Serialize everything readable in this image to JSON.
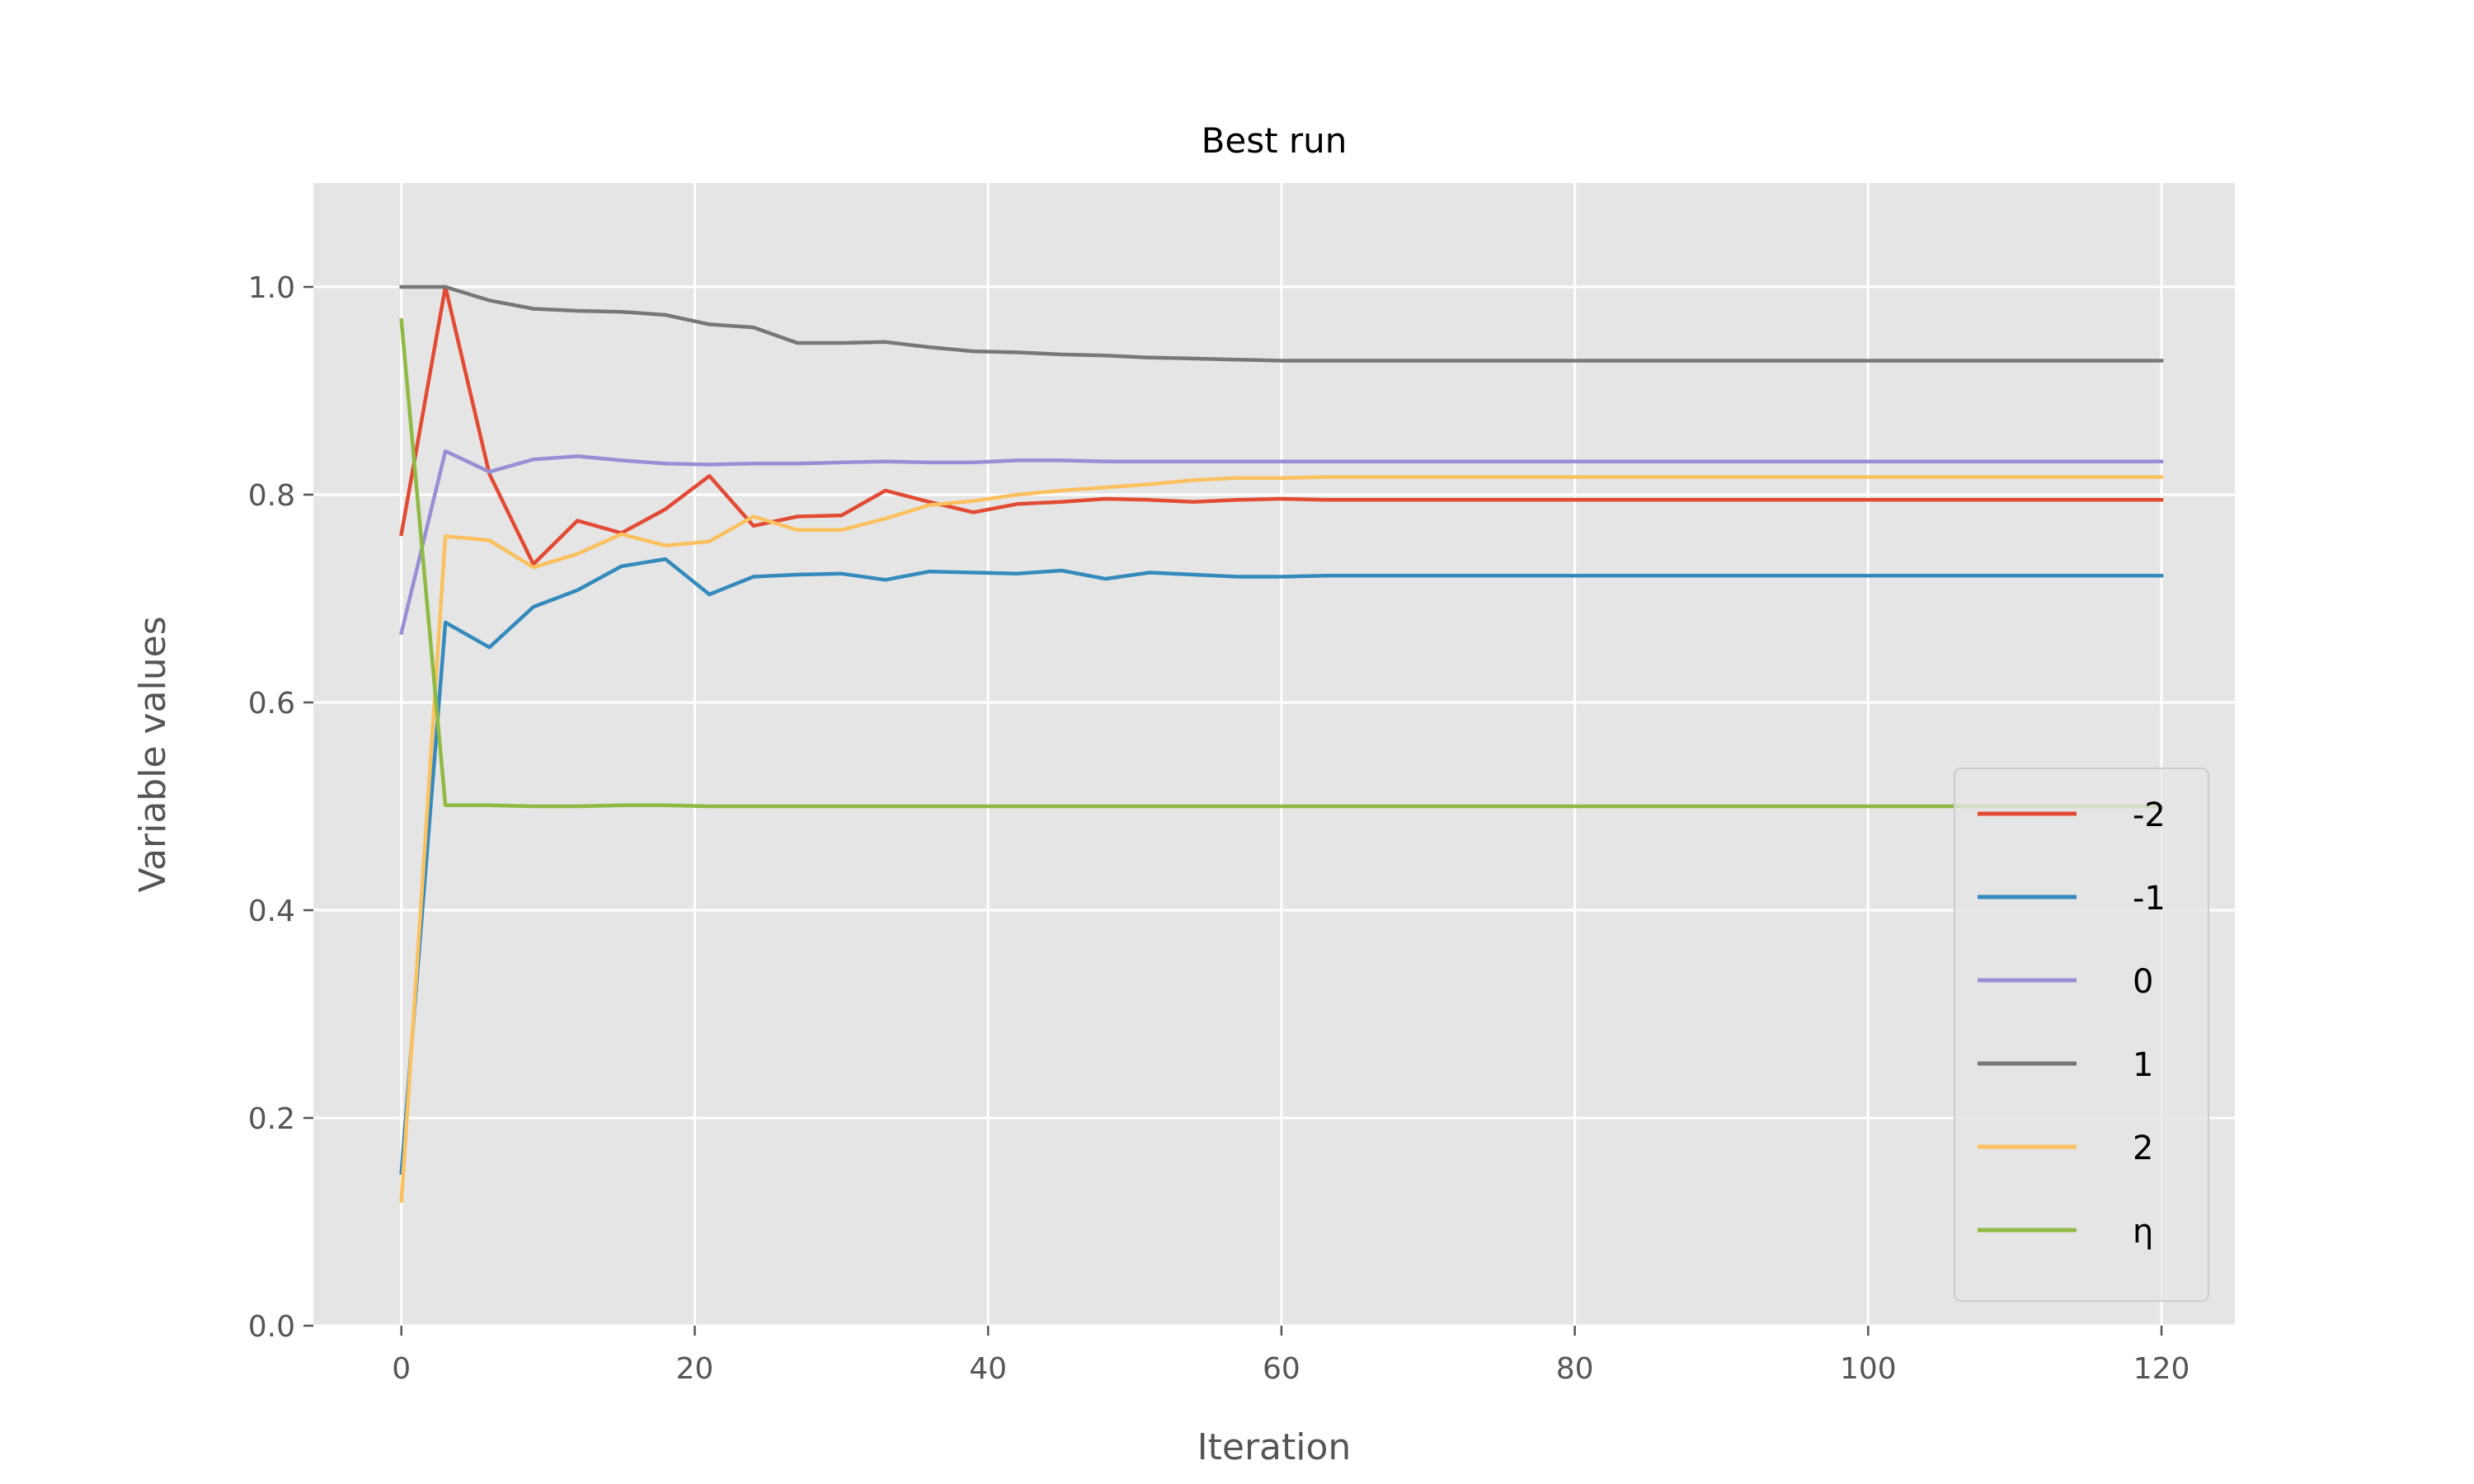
{
  "chart_data": {
    "type": "line",
    "title": "Best run",
    "xlabel": "Iteration",
    "ylabel": "Variable values",
    "xlim": [
      -6,
      125
    ],
    "ylim": [
      0,
      1.1
    ],
    "xticks": [
      0,
      20,
      40,
      60,
      80,
      100,
      120
    ],
    "yticks": [
      0.0,
      0.2,
      0.4,
      0.6,
      0.8,
      1.0
    ],
    "xtick_labels": [
      "0",
      "20",
      "40",
      "60",
      "80",
      "100",
      "120"
    ],
    "ytick_labels": [
      "0.0",
      "0.2",
      "0.4",
      "0.6",
      "0.8",
      "1.0"
    ],
    "grid": true,
    "legend_position": "bottom-right",
    "x": [
      0,
      3,
      6,
      9,
      12,
      15,
      18,
      21,
      24,
      27,
      30,
      33,
      36,
      39,
      42,
      45,
      48,
      51,
      54,
      57,
      60,
      63,
      66,
      69,
      72,
      75,
      78,
      81,
      84,
      87,
      90,
      93,
      96,
      99,
      102,
      105,
      108,
      111,
      114,
      117,
      120
    ],
    "series": [
      {
        "name": "-2",
        "color": "#E24A33",
        "values": [
          0.762,
          1.0,
          0.82,
          0.733,
          0.775,
          0.763,
          0.786,
          0.818,
          0.77,
          0.779,
          0.78,
          0.804,
          0.793,
          0.783,
          0.791,
          0.793,
          0.796,
          0.795,
          0.793,
          0.795,
          0.796,
          0.795,
          0.795,
          0.795,
          0.795,
          0.795,
          0.795,
          0.795,
          0.795,
          0.795,
          0.795,
          0.795,
          0.795,
          0.795,
          0.795,
          0.795,
          0.795,
          0.795,
          0.795,
          0.795,
          0.795
        ]
      },
      {
        "name": "-1",
        "color": "#348ABD",
        "values": [
          0.147,
          0.677,
          0.653,
          0.692,
          0.708,
          0.731,
          0.738,
          0.704,
          0.721,
          0.723,
          0.724,
          0.718,
          0.726,
          0.725,
          0.724,
          0.727,
          0.719,
          0.725,
          0.723,
          0.721,
          0.721,
          0.722,
          0.722,
          0.722,
          0.722,
          0.722,
          0.722,
          0.722,
          0.722,
          0.722,
          0.722,
          0.722,
          0.722,
          0.722,
          0.722,
          0.722,
          0.722,
          0.722,
          0.722,
          0.722,
          0.722
        ]
      },
      {
        "name": "0",
        "color": "#988ED5",
        "values": [
          0.667,
          0.842,
          0.822,
          0.834,
          0.837,
          0.833,
          0.83,
          0.829,
          0.83,
          0.83,
          0.831,
          0.832,
          0.831,
          0.831,
          0.833,
          0.833,
          0.832,
          0.832,
          0.832,
          0.832,
          0.832,
          0.832,
          0.832,
          0.832,
          0.832,
          0.832,
          0.832,
          0.832,
          0.832,
          0.832,
          0.832,
          0.832,
          0.832,
          0.832,
          0.832,
          0.832,
          0.832,
          0.832,
          0.832,
          0.832,
          0.832
        ]
      },
      {
        "name": "1",
        "color": "#777777",
        "values": [
          1.0,
          1.0,
          0.987,
          0.979,
          0.977,
          0.976,
          0.973,
          0.964,
          0.961,
          0.946,
          0.946,
          0.947,
          0.942,
          0.938,
          0.937,
          0.935,
          0.934,
          0.932,
          0.931,
          0.93,
          0.929,
          0.929,
          0.929,
          0.929,
          0.929,
          0.929,
          0.929,
          0.929,
          0.929,
          0.929,
          0.929,
          0.929,
          0.929,
          0.929,
          0.929,
          0.929,
          0.929,
          0.929,
          0.929,
          0.929,
          0.929
        ]
      },
      {
        "name": "2",
        "color": "#FBC15E",
        "values": [
          0.12,
          0.76,
          0.756,
          0.73,
          0.743,
          0.762,
          0.751,
          0.755,
          0.779,
          0.766,
          0.766,
          0.777,
          0.79,
          0.794,
          0.8,
          0.804,
          0.807,
          0.81,
          0.814,
          0.816,
          0.816,
          0.817,
          0.817,
          0.817,
          0.817,
          0.817,
          0.817,
          0.817,
          0.817,
          0.817,
          0.817,
          0.817,
          0.817,
          0.817,
          0.817,
          0.817,
          0.817,
          0.817,
          0.817,
          0.817,
          0.817
        ]
      },
      {
        "name": "η",
        "color": "#8EBA42",
        "values": [
          0.968,
          0.501,
          0.501,
          0.5,
          0.5,
          0.501,
          0.501,
          0.5,
          0.5,
          0.5,
          0.5,
          0.5,
          0.5,
          0.5,
          0.5,
          0.5,
          0.5,
          0.5,
          0.5,
          0.5,
          0.5,
          0.5,
          0.5,
          0.5,
          0.5,
          0.5,
          0.5,
          0.5,
          0.5,
          0.5,
          0.5,
          0.5,
          0.5,
          0.5,
          0.5,
          0.5,
          0.5,
          0.5,
          0.5,
          0.5,
          0.5
        ]
      }
    ],
    "plot_background": "#E5E5E5",
    "grid_color": "#FFFFFF"
  }
}
